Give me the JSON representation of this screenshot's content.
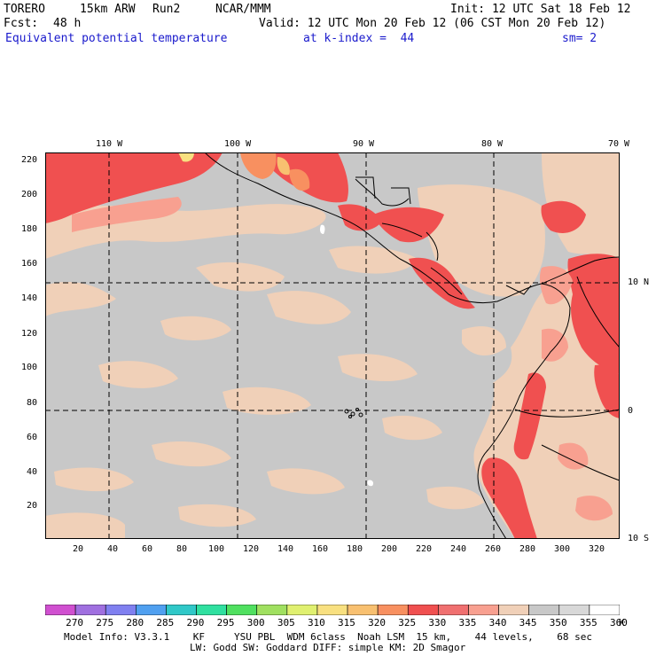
{
  "header": {
    "model": "TORERO",
    "resolution": "15km ARW",
    "run": "Run2",
    "org": "NCAR/MMM",
    "init": "Init: 12 UTC Sat 18 Feb 12",
    "fcst": "Fcst:",
    "fcst_value": "48 h",
    "valid": "Valid: 12 UTC Mon 20 Feb 12 (06 CST Mon 20 Feb 12)",
    "field": "Equivalent potential temperature",
    "level": "at k-index =  44",
    "smooth": "sm= 2"
  },
  "map": {
    "lon_labels": [
      "110 W",
      "100 W",
      "90 W",
      "80 W",
      "70 W"
    ],
    "lat_labels": [
      "10 N",
      "0",
      "10 S"
    ],
    "y_ticks": [
      "20",
      "40",
      "60",
      "80",
      "100",
      "120",
      "140",
      "160",
      "180",
      "200",
      "220"
    ],
    "x_ticks": [
      "20",
      "40",
      "60",
      "80",
      "100",
      "120",
      "140",
      "160",
      "180",
      "200",
      "220",
      "240",
      "260",
      "280",
      "300",
      "320"
    ]
  },
  "colorbar": {
    "values": [
      "270",
      "275",
      "280",
      "285",
      "290",
      "295",
      "300",
      "305",
      "310",
      "315",
      "320",
      "325",
      "330",
      "335",
      "340",
      "345",
      "350",
      "355",
      "360"
    ],
    "unit": "K",
    "colors": [
      "#d050d0",
      "#a070e0",
      "#8080f0",
      "#50a0f0",
      "#30c8c8",
      "#30e0a0",
      "#50e060",
      "#a0e060",
      "#e0f070",
      "#f8e080",
      "#f8c070",
      "#f89060",
      "#f05050",
      "#f07070",
      "#f8a090",
      "#f0d0b8",
      "#c8c8c8",
      "#d8d8d8",
      "#ffffff"
    ]
  },
  "footer": {
    "line1": "Model Info: V3.3.1    KF     YSU PBL  WDM 6class  Noah LSM  15 km,    44 levels,    68 sec",
    "line2": "LW: Godd SW: Goddard DIFF: simple KM: 2D Smagor"
  }
}
